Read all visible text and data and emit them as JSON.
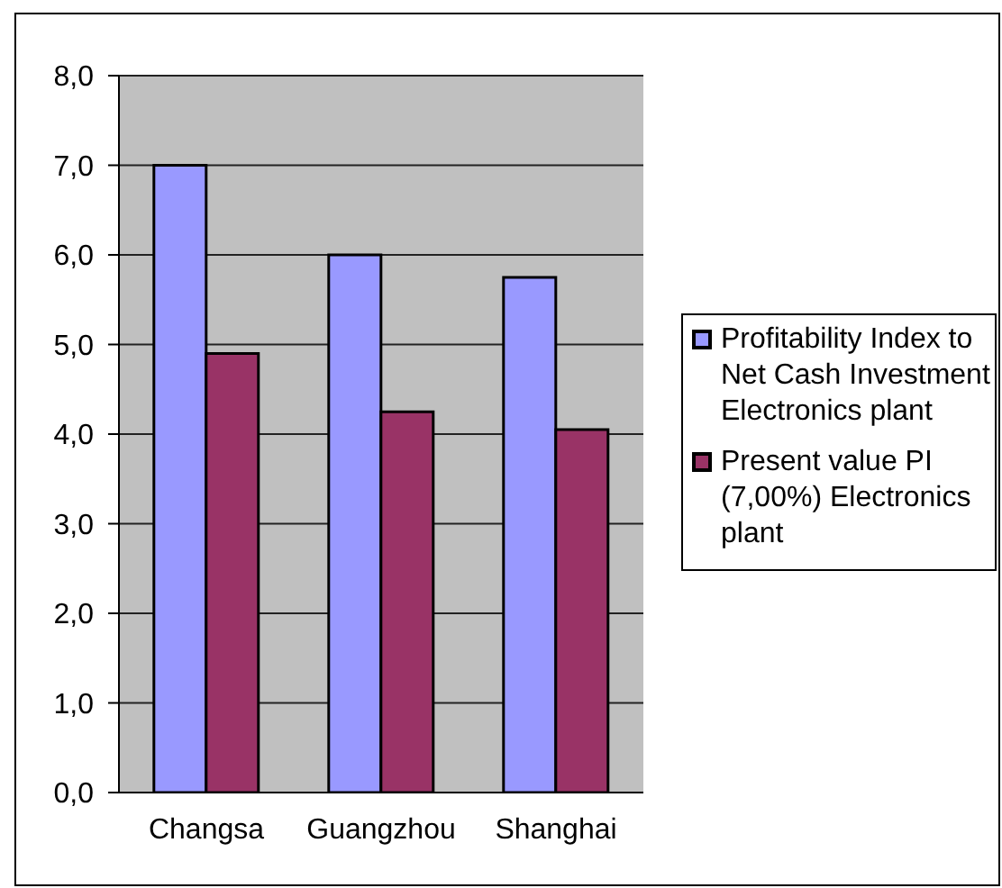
{
  "chart_data": {
    "type": "bar",
    "categories": [
      "Changsa",
      "Guangzhou",
      "Shanghai"
    ],
    "series": [
      {
        "name": "Profitability Index to Net Cash Investment Electronics plant",
        "color": "#9999ff",
        "values": [
          7.0,
          6.0,
          5.75
        ]
      },
      {
        "name": "Present value PI (7,00%) Electronics plant",
        "color": "#993366",
        "values": [
          4.9,
          4.25,
          4.05
        ]
      }
    ],
    "ylim": [
      0,
      8
    ],
    "yticks": [
      {
        "value": 0,
        "label": "0,0"
      },
      {
        "value": 1,
        "label": "1,0"
      },
      {
        "value": 2,
        "label": "2,0"
      },
      {
        "value": 3,
        "label": "3,0"
      },
      {
        "value": 4,
        "label": "4,0"
      },
      {
        "value": 5,
        "label": "5,0"
      },
      {
        "value": 6,
        "label": "6,0"
      },
      {
        "value": 7,
        "label": "7,0"
      },
      {
        "value": 8,
        "label": "8,0"
      }
    ],
    "grid": "y",
    "legend": "right"
  }
}
